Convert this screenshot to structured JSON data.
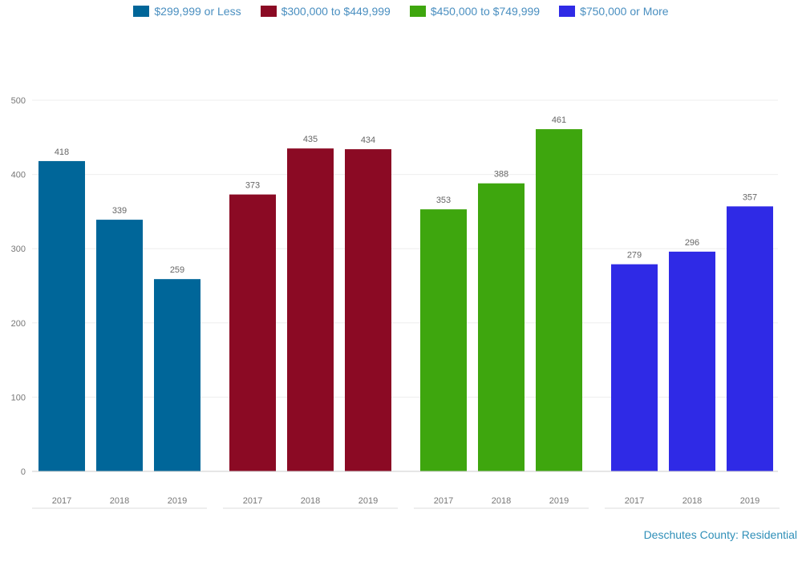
{
  "chart_data": {
    "type": "bar",
    "title": "",
    "xlabel": "",
    "ylabel": "",
    "ylim": [
      0,
      500
    ],
    "yticks": [
      0,
      100,
      200,
      300,
      400,
      500
    ],
    "series": [
      {
        "name": "$299,999 or Less",
        "color": "#006699",
        "x": [
          "2017",
          "2018",
          "2019"
        ],
        "group": "",
        "values": [
          418,
          339,
          259
        ]
      },
      {
        "name": "$300,000 to $449,999",
        "color": "#8b0a24",
        "x": [
          "2017",
          "2018",
          "2019"
        ],
        "group": "",
        "values": [
          373,
          435,
          434
        ]
      },
      {
        "name": "$450,000 to $749,999",
        "color": "#3ea60e",
        "x": [
          "2017",
          "2018",
          "2019"
        ],
        "group": "",
        "values": [
          353,
          388,
          461
        ]
      },
      {
        "name": "$750,000 or More",
        "color": "#2f2ae6",
        "x": [
          "2017",
          "2018",
          "2019"
        ],
        "group": "",
        "values": [
          279,
          296,
          357
        ]
      }
    ],
    "legend_position": "top",
    "grid": true
  },
  "footer": {
    "title": "Deschutes County: Residential",
    "note": "",
    "disclaimer": ""
  }
}
